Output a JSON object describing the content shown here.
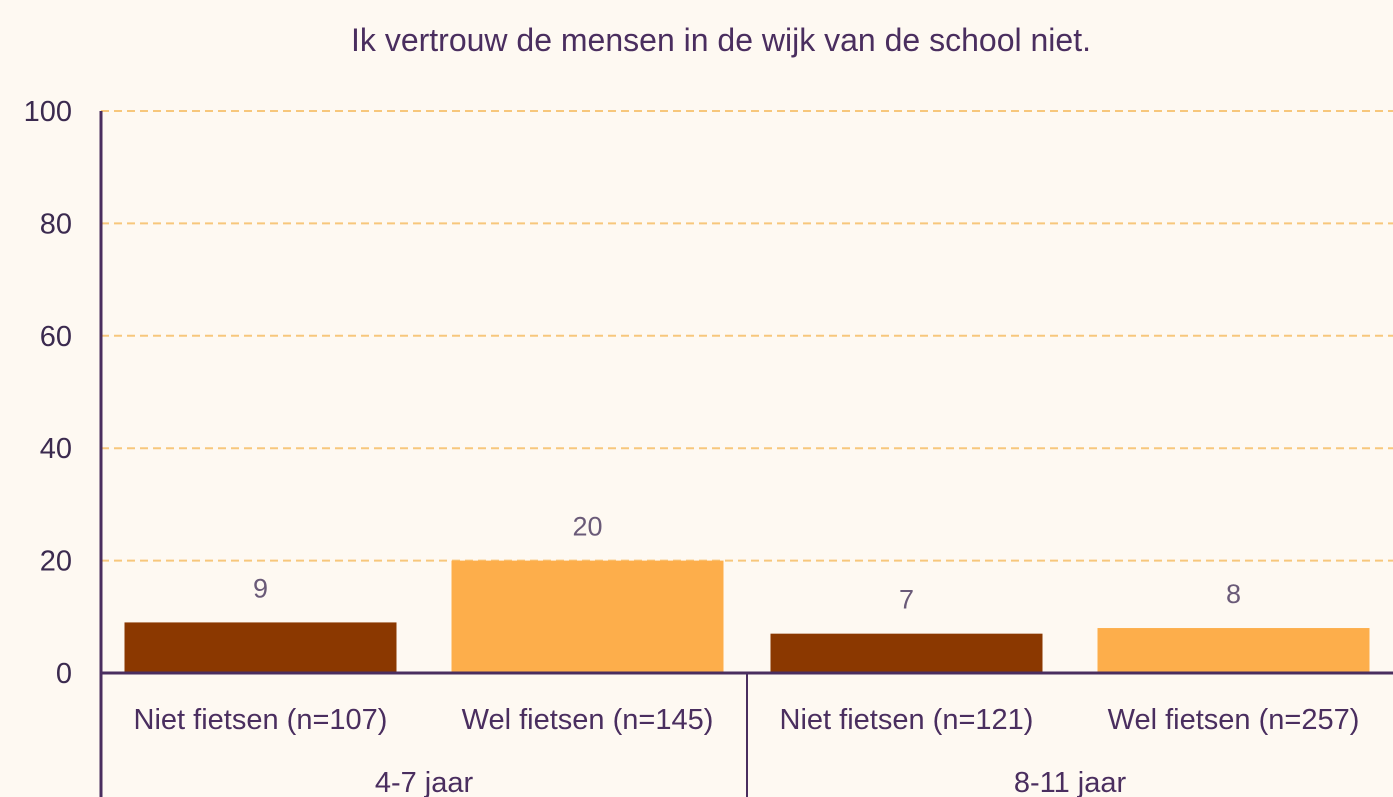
{
  "chart_data": {
    "type": "bar",
    "title": "Ik vertrouw de mensen in de wijk van de school niet.",
    "xlabel": "",
    "ylabel": "",
    "ylim": [
      0,
      100
    ],
    "yticks": [
      "0",
      "20",
      "40",
      "60",
      "80",
      "100"
    ],
    "grid": true,
    "groups": [
      {
        "label": "4-7 jaar",
        "bars": [
          {
            "category": "Niet fietsen (n=107)",
            "value": 9,
            "value_label": "9",
            "color": "#8b3800"
          },
          {
            "category": "Wel fietsen (n=145)",
            "value": 20,
            "value_label": "20",
            "color": "#fdae4b"
          }
        ]
      },
      {
        "label": "8-11 jaar",
        "bars": [
          {
            "category": "Niet fietsen (n=121)",
            "value": 7,
            "value_label": "7",
            "color": "#8b3800"
          },
          {
            "category": "Wel fietsen (n=257)",
            "value": 8,
            "value_label": "8",
            "color": "#fdae4b"
          }
        ]
      }
    ]
  },
  "colors": {
    "background": "#fef9f2",
    "axis": "#4a2e5f",
    "grid": "#f7c77c",
    "niet_fietsen": "#8b3800",
    "wel_fietsen": "#fdae4b"
  }
}
